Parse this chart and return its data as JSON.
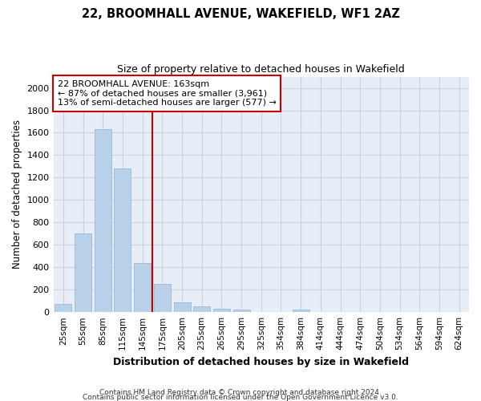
{
  "title": "22, BROOMHALL AVENUE, WAKEFIELD, WF1 2AZ",
  "subtitle": "Size of property relative to detached houses in Wakefield",
  "xlabel": "Distribution of detached houses by size in Wakefield",
  "ylabel": "Number of detached properties",
  "footnote1": "Contains HM Land Registry data © Crown copyright and database right 2024.",
  "footnote2": "Contains public sector information licensed under the Open Government Licence v3.0.",
  "bar_labels": [
    "25sqm",
    "55sqm",
    "85sqm",
    "115sqm",
    "145sqm",
    "175sqm",
    "205sqm",
    "235sqm",
    "265sqm",
    "295sqm",
    "325sqm",
    "354sqm",
    "384sqm",
    "414sqm",
    "444sqm",
    "474sqm",
    "504sqm",
    "534sqm",
    "564sqm",
    "594sqm",
    "624sqm"
  ],
  "bar_values": [
    70,
    700,
    1630,
    1280,
    440,
    255,
    90,
    52,
    30,
    20,
    0,
    0,
    20,
    0,
    0,
    0,
    0,
    0,
    0,
    0,
    0
  ],
  "bar_color": "#b8d0e8",
  "bar_edge_color": "#9ab8d8",
  "grid_color": "#c8d4e4",
  "annotation_box_color": "#cc0000",
  "annotation_text1": "22 BROOMHALL AVENUE: 163sqm",
  "annotation_text2": "← 87% of detached houses are smaller (3,961)",
  "annotation_text3": "13% of semi-detached houses are larger (577) →",
  "red_line_index": 5,
  "ylim": [
    0,
    2100
  ],
  "yticks": [
    0,
    200,
    400,
    600,
    800,
    1000,
    1200,
    1400,
    1600,
    1800,
    2000
  ],
  "fig_bg_color": "#ffffff",
  "plot_bg_color": "#e8eef8"
}
